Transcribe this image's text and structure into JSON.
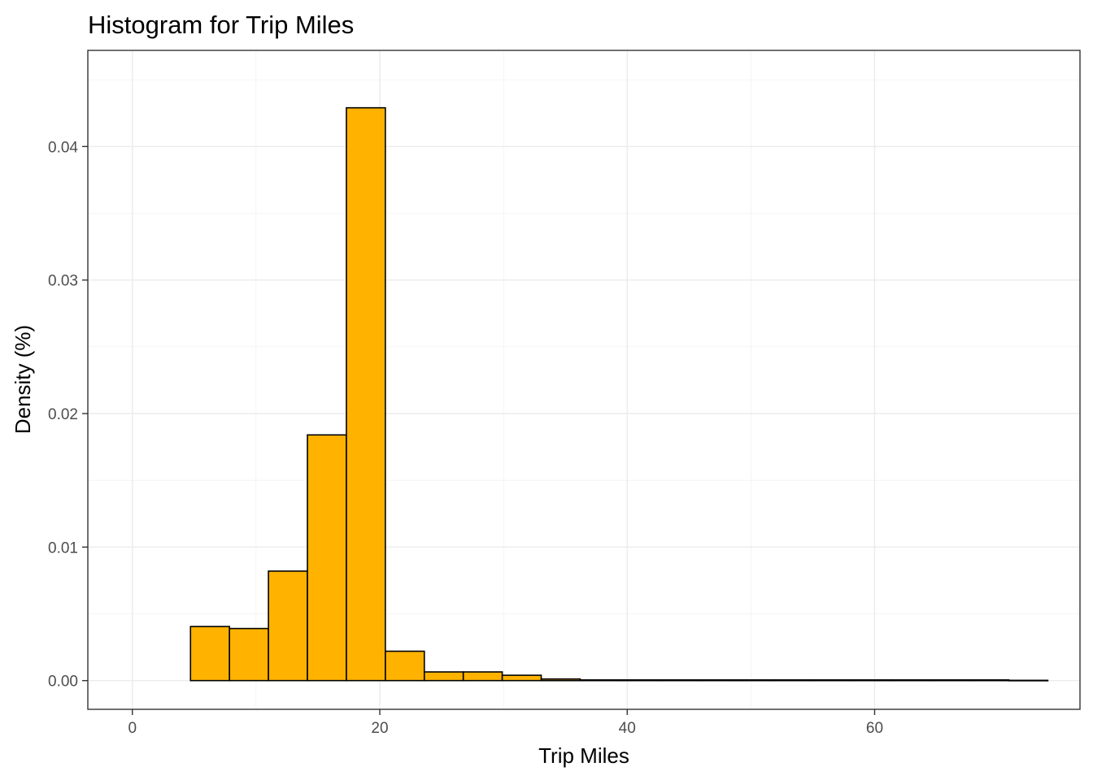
{
  "chart_data": {
    "type": "bar",
    "title": "Histogram for Trip Miles",
    "xlabel": "Trip Miles",
    "ylabel": "Density (%)",
    "xlim": [
      -3.6,
      76.6
    ],
    "ylim": [
      -0.00215,
      0.0472
    ],
    "x_ticks": [
      0,
      20,
      40,
      60
    ],
    "x_tick_labels": [
      "0",
      "20",
      "40",
      "60"
    ],
    "y_ticks": [
      0.0,
      0.01,
      0.02,
      0.03,
      0.04
    ],
    "y_tick_labels": [
      "0.00",
      "0.01",
      "0.02",
      "0.03",
      "0.04"
    ],
    "grid": true,
    "bar_color": "#ffb300",
    "bar_outline": "#000000",
    "bins": [
      {
        "x0": 4.7,
        "x1": 7.85,
        "value": 0.00405
      },
      {
        "x0": 7.85,
        "x1": 11.0,
        "value": 0.0039
      },
      {
        "x0": 11.0,
        "x1": 14.15,
        "value": 0.0082
      },
      {
        "x0": 14.15,
        "x1": 17.3,
        "value": 0.0184
      },
      {
        "x0": 17.3,
        "x1": 20.45,
        "value": 0.0429
      },
      {
        "x0": 20.45,
        "x1": 23.6,
        "value": 0.0022
      },
      {
        "x0": 23.6,
        "x1": 26.75,
        "value": 0.00065
      },
      {
        "x0": 26.75,
        "x1": 29.9,
        "value": 0.00065
      },
      {
        "x0": 29.9,
        "x1": 33.05,
        "value": 0.0004
      },
      {
        "x0": 33.05,
        "x1": 36.2,
        "value": 0.00012
      },
      {
        "x0": 36.2,
        "x1": 39.35,
        "value": 5e-05
      },
      {
        "x0": 39.35,
        "x1": 42.5,
        "value": 5e-05
      },
      {
        "x0": 42.5,
        "x1": 45.65,
        "value": 5e-05
      },
      {
        "x0": 45.65,
        "x1": 48.8,
        "value": 5e-05
      },
      {
        "x0": 48.8,
        "x1": 51.95,
        "value": 5e-05
      },
      {
        "x0": 51.95,
        "x1": 55.1,
        "value": 5e-05
      },
      {
        "x0": 55.1,
        "x1": 58.25,
        "value": 5e-05
      },
      {
        "x0": 58.25,
        "x1": 61.4,
        "value": 5e-05
      },
      {
        "x0": 61.4,
        "x1": 64.55,
        "value": 5e-05
      },
      {
        "x0": 64.55,
        "x1": 67.7,
        "value": 5e-05
      },
      {
        "x0": 67.7,
        "x1": 70.85,
        "value": 5e-05
      },
      {
        "x0": 70.85,
        "x1": 74.0,
        "value": 2e-05
      }
    ]
  }
}
